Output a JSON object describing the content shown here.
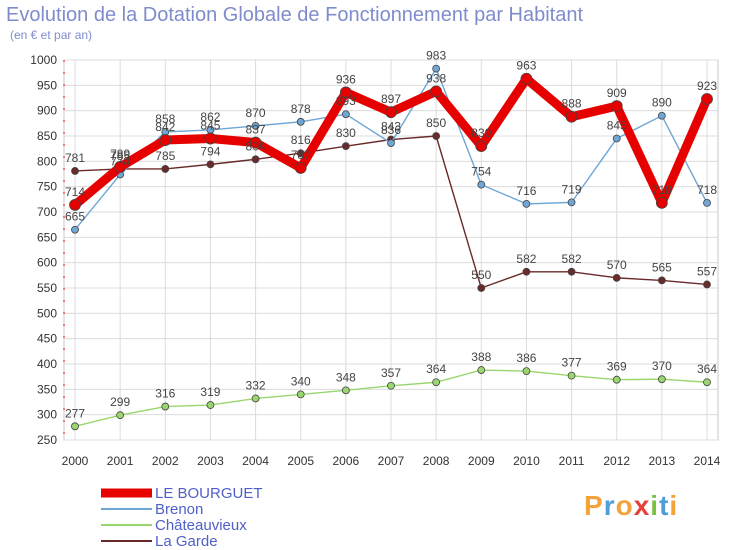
{
  "title": "Evolution de la Dotation Globale de Fonctionnement par Habitant",
  "subtitle": "(en € et par an)",
  "brand": {
    "letters": [
      "P",
      "r",
      "o",
      "x",
      "i",
      "t",
      "i"
    ],
    "colors": [
      "#f2a33c",
      "#4e9fd8",
      "#f2a33c",
      "#e8413c",
      "#7ac143",
      "#4e9fd8",
      "#f2a33c"
    ]
  },
  "chart_data": {
    "type": "line",
    "x": [
      2000,
      2001,
      2002,
      2003,
      2004,
      2005,
      2006,
      2007,
      2008,
      2009,
      2010,
      2011,
      2012,
      2013,
      2014
    ],
    "ylim": [
      250,
      1000
    ],
    "yticks": [
      250,
      300,
      350,
      400,
      450,
      500,
      550,
      600,
      650,
      700,
      750,
      800,
      850,
      900,
      950,
      1000
    ],
    "grid": true,
    "legend": "bottom-left",
    "series": [
      {
        "name": "LE BOURGUET",
        "color": "#e60000",
        "values": [
          714,
          789,
          842,
          845,
          837,
          787,
          936,
          897,
          938,
          830,
          963,
          888,
          909,
          718,
          923
        ]
      },
      {
        "name": "Brenon",
        "color": "#6fa6d6",
        "values": [
          665,
          774,
          858,
          862,
          870,
          878,
          893,
          836,
          983,
          754,
          716,
          719,
          845,
          890,
          718
        ]
      },
      {
        "name": "Châteauvieux",
        "color": "#9ad66e",
        "values": [
          277,
          299,
          316,
          319,
          332,
          340,
          348,
          357,
          364,
          388,
          386,
          377,
          369,
          370,
          364
        ]
      },
      {
        "name": "La Garde",
        "color": "#6b2a2a",
        "values": [
          781,
          785,
          785,
          794,
          804,
          816,
          830,
          843,
          850,
          550,
          582,
          582,
          570,
          565,
          557
        ]
      }
    ]
  }
}
